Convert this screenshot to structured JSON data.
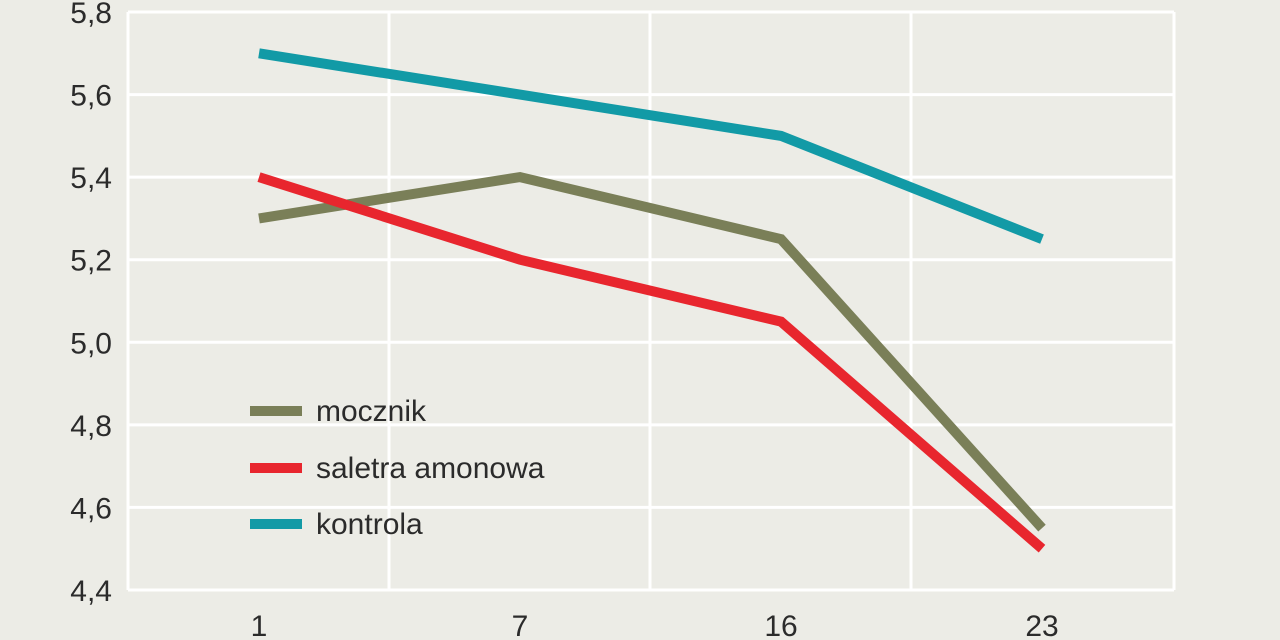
{
  "chart_data": {
    "type": "line",
    "title": "",
    "xlabel": "",
    "ylabel": "",
    "categories": [
      "1",
      "7",
      "16",
      "23"
    ],
    "ylim": [
      4.4,
      5.8
    ],
    "yticks": [
      4.4,
      4.6,
      4.8,
      5.0,
      5.2,
      5.4,
      5.6,
      5.8
    ],
    "ytick_labels": [
      "4,4",
      "4,6",
      "4,8",
      "5,0",
      "5,2",
      "5,4",
      "5,6",
      "5,8"
    ],
    "grid": true,
    "legend_position": "bottom-left",
    "series": [
      {
        "name": "mocznik",
        "color": "#7a7f58",
        "values": [
          5.3,
          5.4,
          5.25,
          4.55
        ]
      },
      {
        "name": "saletra amonowa",
        "color": "#e8262e",
        "values": [
          5.4,
          5.2,
          5.05,
          4.5
        ]
      },
      {
        "name": "kontrola",
        "color": "#129aa6",
        "values": [
          5.7,
          5.6,
          5.5,
          5.25
        ]
      }
    ]
  }
}
